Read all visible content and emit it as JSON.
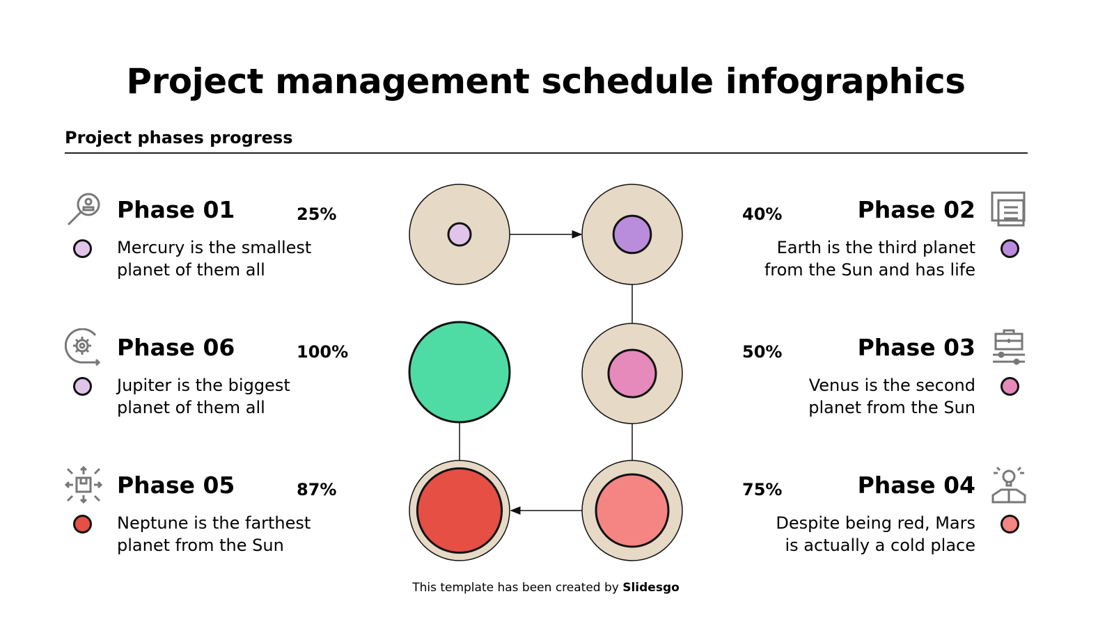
{
  "title": "Project management schedule infographics",
  "subtitle": "Project phases progress",
  "phases": [
    {
      "name": "Phase 01",
      "percent": "25%",
      "value": 0.25,
      "desc1": "Mercury is the smallest",
      "desc2": "planet of them all",
      "color": "#e0c4ea",
      "dot_color": "#e0c4ea",
      "icon": "magnifier-user-icon"
    },
    {
      "name": "Phase 02",
      "percent": "40%",
      "value": 0.4,
      "desc1": "Earth is the third planet",
      "desc2": "from the Sun and has life",
      "color": "#b98cdc",
      "dot_color": "#b98cdc",
      "icon": "document-icon"
    },
    {
      "name": "Phase 03",
      "percent": "50%",
      "value": 0.5,
      "desc1": "Venus is the second",
      "desc2": "planet from the Sun",
      "color": "#e689bb",
      "dot_color": "#e689bb",
      "icon": "briefcase-sliders-icon"
    },
    {
      "name": "Phase 04",
      "percent": "75%",
      "value": 0.75,
      "desc1": "Despite being red, Mars",
      "desc2": "is actually a cold place",
      "color": "#f48582",
      "dot_color": "#f48582",
      "icon": "lightbulb-person-icon"
    },
    {
      "name": "Phase 05",
      "percent": "87%",
      "value": 0.87,
      "desc1": "Neptune is the farthest",
      "desc2": "planet from the Sun",
      "color": "#e54f44",
      "dot_color": "#e54f44",
      "icon": "box-arrows-icon"
    },
    {
      "name": "Phase 06",
      "percent": "100%",
      "value": 1.0,
      "desc1": "Jupiter is the biggest",
      "desc2": "planet of them all",
      "color": "#4fdca4",
      "dot_color": "#e0c4ea",
      "icon": "gear-cycle-icon"
    }
  ],
  "ring_color": "#e6d9c5",
  "footer": {
    "text": "This template has been created by ",
    "brand": "Slidesgo"
  }
}
